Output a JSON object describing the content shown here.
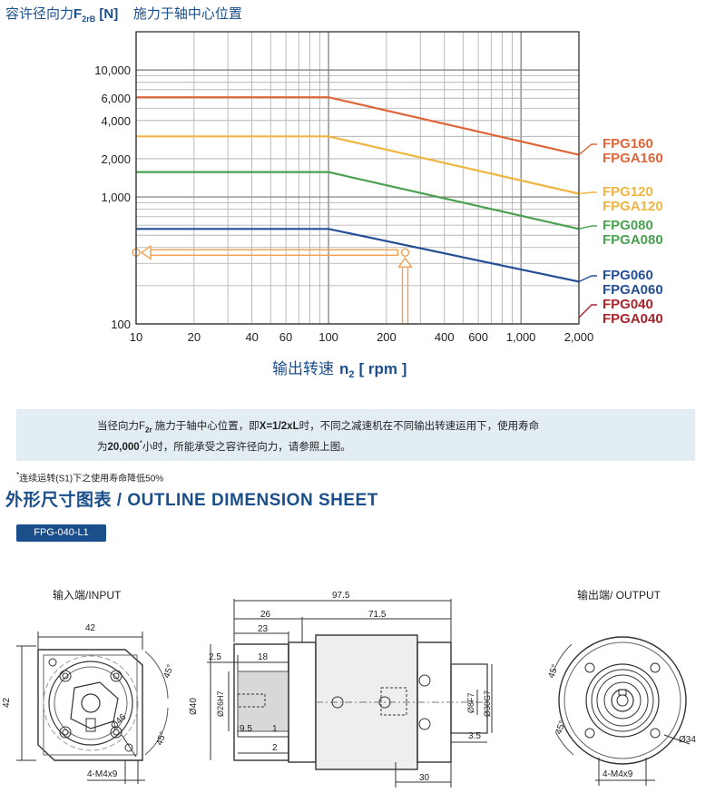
{
  "chart_data": {
    "type": "line",
    "title_prefix": "容许径向力",
    "title_symbol": "F",
    "title_subscript": "2rB",
    "title_unit": "[N]",
    "title_suffix": "施力于轴中心位置",
    "xlabel": "输出转速",
    "xlabel_symbol": "n",
    "xlabel_subscript": "2",
    "xlabel_unit": "[ rpm ]",
    "x_scale": "log",
    "y_scale": "log",
    "xlim": [
      10,
      2000
    ],
    "ylim": [
      100,
      20000
    ],
    "grid": true,
    "x_ticks": [
      10,
      20,
      40,
      60,
      100,
      200,
      400,
      600,
      1000,
      2000
    ],
    "x_tick_labels": [
      "10",
      "20",
      "40",
      "60",
      "100",
      "200",
      "400",
      "600",
      "1,000",
      "2,000"
    ],
    "y_ticks": [
      100,
      1000,
      2000,
      4000,
      6000,
      10000
    ],
    "y_tick_labels": [
      "100",
      "1,000",
      "2,000",
      "4,000",
      "6,000",
      "10,000"
    ],
    "series": [
      {
        "name": "FPG160",
        "name2": "FPGA160",
        "color": "#e06538",
        "x": [
          10,
          100,
          2000
        ],
        "y": [
          6100,
          6100,
          2150
        ]
      },
      {
        "name": "FPG120",
        "name2": "FPGA120",
        "color": "#f0b540",
        "x": [
          10,
          100,
          2000
        ],
        "y": [
          3000,
          3000,
          1060
        ]
      },
      {
        "name": "FPG080",
        "name2": "FPGA080",
        "color": "#4aa151",
        "x": [
          10,
          100,
          2000
        ],
        "y": [
          1570,
          1570,
          560
        ]
      },
      {
        "name": "FPG060",
        "name2": "FPGA060",
        "color": "#244f96",
        "x": [
          10,
          100,
          2000
        ],
        "y": [
          560,
          560,
          215
        ]
      },
      {
        "name": "FPG040",
        "name2": "FPGA040",
        "color": "#a8232a",
        "x": [],
        "y": []
      }
    ],
    "example_arrow": {
      "color": "#f0a050",
      "x": 250,
      "y": 365
    }
  },
  "note": {
    "line1_a": "当径向力F",
    "line1_sub": "2r",
    "line1_b": " 施力于轴中心位置，即",
    "line1_bold": "X=1/2xL",
    "line1_c": "时，不同之减速机在不同输出转速运用下，使用寿命",
    "line2_a": "为",
    "line2_bold": "20,000",
    "line2_sup": "*",
    "line2_b": "小时，所能承受之容许径向力，请参照上图。"
  },
  "footnote": {
    "star": "*",
    "text": "连续运转(S1)下之使用寿命降低50%"
  },
  "section": {
    "title": "外形尺寸图表 / OUTLINE DIMENSION SHEET"
  },
  "model_tab": {
    "label": "FPG-040-L1"
  },
  "drawing": {
    "input_label": "输入端/INPUT",
    "output_label": "输出端/ OUTPUT",
    "dims": {
      "d42_top": "42",
      "d42_side": "42",
      "d45_in_a": "45°",
      "d45_in_b": "45°",
      "d46": "Ø46",
      "m4_in": "4-M4x9",
      "d97_5": "97.5",
      "d26": "26",
      "d71_5": "71.5",
      "d23": "23",
      "d2_5": "2.5",
      "d18": "18",
      "d40": "Ø40",
      "d26h7": "Ø26H7",
      "d9_5": "9.5",
      "d1": "1",
      "d2": "2",
      "d8f7": "Ø8F7",
      "d30g7": "Ø30G7",
      "d3_5": "3.5",
      "d30": "30",
      "d45_out_a": "45°",
      "d45_out_b": "45°",
      "d34": "Ø34",
      "m4_out": "4-M4x9"
    }
  }
}
